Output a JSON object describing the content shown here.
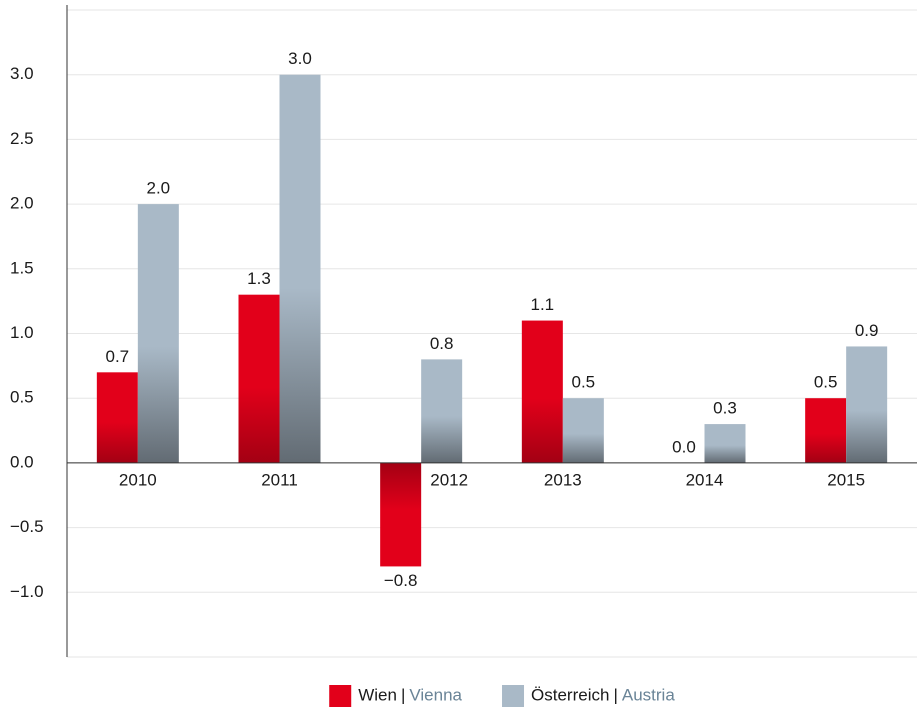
{
  "chart_data": {
    "type": "bar",
    "categories": [
      "2010",
      "2011",
      "2012",
      "2013",
      "2014",
      "2015"
    ],
    "series": [
      {
        "name": "Wien",
        "name_en": "Vienna",
        "color": "#e2001a",
        "values": [
          0.7,
          1.3,
          -0.8,
          1.1,
          0.0,
          0.5
        ],
        "value_labels": [
          "0.7",
          "1.3",
          "−0.8",
          "1.1",
          "0.0",
          "0.5"
        ]
      },
      {
        "name": "Österreich",
        "name_en": "Austria",
        "color": "#a9b9c7",
        "values": [
          2.0,
          3.0,
          0.8,
          0.5,
          0.3,
          0.9
        ],
        "value_labels": [
          "2.0",
          "3.0",
          "0.8",
          "0.5",
          "0.3",
          "0.9"
        ]
      }
    ],
    "legend_separator": "|",
    "ylim": [
      -1.5,
      3.5
    ],
    "yticks": [
      {
        "value": -1.0,
        "label": "−1.0"
      },
      {
        "value": -0.5,
        "label": "−0.5"
      },
      {
        "value": 0,
        "label": "0.0"
      },
      {
        "value": 0.5,
        "label": "0.5"
      },
      {
        "value": 1.0,
        "label": "1.0"
      },
      {
        "value": 1.5,
        "label": "1.5"
      },
      {
        "value": 2.0,
        "label": "2.0"
      },
      {
        "value": 2.5,
        "label": "2.5"
      },
      {
        "value": 3.0,
        "label": "3.0"
      }
    ],
    "grid": true,
    "legend": "bottom"
  }
}
